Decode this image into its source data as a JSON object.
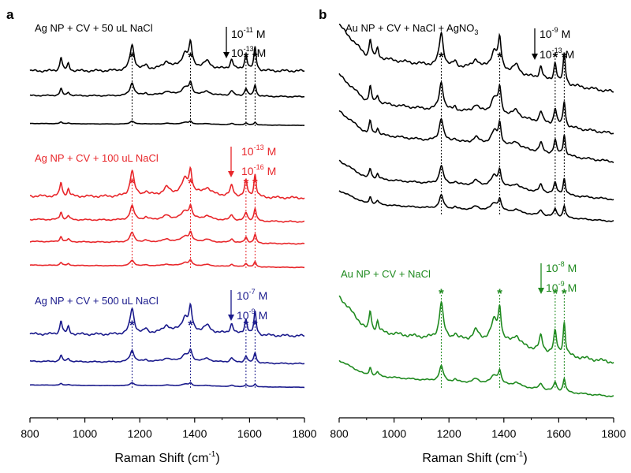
{
  "chart_data": [
    {
      "type": "line",
      "panel": "a",
      "xlabel": "Raman Shift (cm",
      "xlabel_sup": "-1",
      "xlabel_end": ")",
      "xlim": [
        800,
        1800
      ],
      "xticks": [
        "800",
        "1000",
        "1200",
        "1400",
        "1600",
        "1800"
      ],
      "peak_markers": [
        1172,
        1385,
        1587,
        1620
      ],
      "star": "*",
      "groups": [
        {
          "title": "Ag NP + CV + 50 uL NaCl",
          "color": "#000000",
          "conc_high": "10",
          "conc_high_exp": "-11",
          "conc_low": "10",
          "conc_low_exp": "-13",
          "unit": "M",
          "arrow": "down",
          "series_count": 3
        },
        {
          "title": "Ag NP + CV + 100 uL NaCl",
          "color": "#e8262a",
          "conc_high": "10",
          "conc_high_exp": "-13",
          "conc_low": "10",
          "conc_low_exp": "-16",
          "unit": "M",
          "arrow": "down",
          "series_count": 4
        },
        {
          "title": "Ag NP + CV + 500 uL NaCl",
          "color": "#1a1a8c",
          "conc_high": "10",
          "conc_high_exp": "-7",
          "conc_low": "10",
          "conc_low_exp": "-9",
          "unit": "M",
          "arrow": "down",
          "series_count": 3
        }
      ]
    },
    {
      "type": "line",
      "panel": "b",
      "xlabel": "Raman Shift (cm",
      "xlabel_sup": "-1",
      "xlabel_end": ")",
      "xlim": [
        800,
        1800
      ],
      "xticks": [
        "800",
        "1000",
        "1200",
        "1400",
        "1600",
        "1800"
      ],
      "peak_markers": [
        1172,
        1385,
        1587,
        1620
      ],
      "star": "*",
      "groups": [
        {
          "title": "Au NP + CV + NaCl + AgNO",
          "title_sub": "3",
          "color": "#000000",
          "conc_high": "10",
          "conc_high_exp": "-9",
          "conc_low": "10",
          "conc_low_exp": "-13",
          "unit": "M",
          "arrow": "down",
          "series_count": 5
        },
        {
          "title": "Au NP + CV + NaCl",
          "color": "#1f8a1f",
          "conc_high": "10",
          "conc_high_exp": "-8",
          "conc_low": "10",
          "conc_low_exp": "-9",
          "unit": "M",
          "arrow": "down",
          "series_count": 2
        }
      ]
    }
  ]
}
